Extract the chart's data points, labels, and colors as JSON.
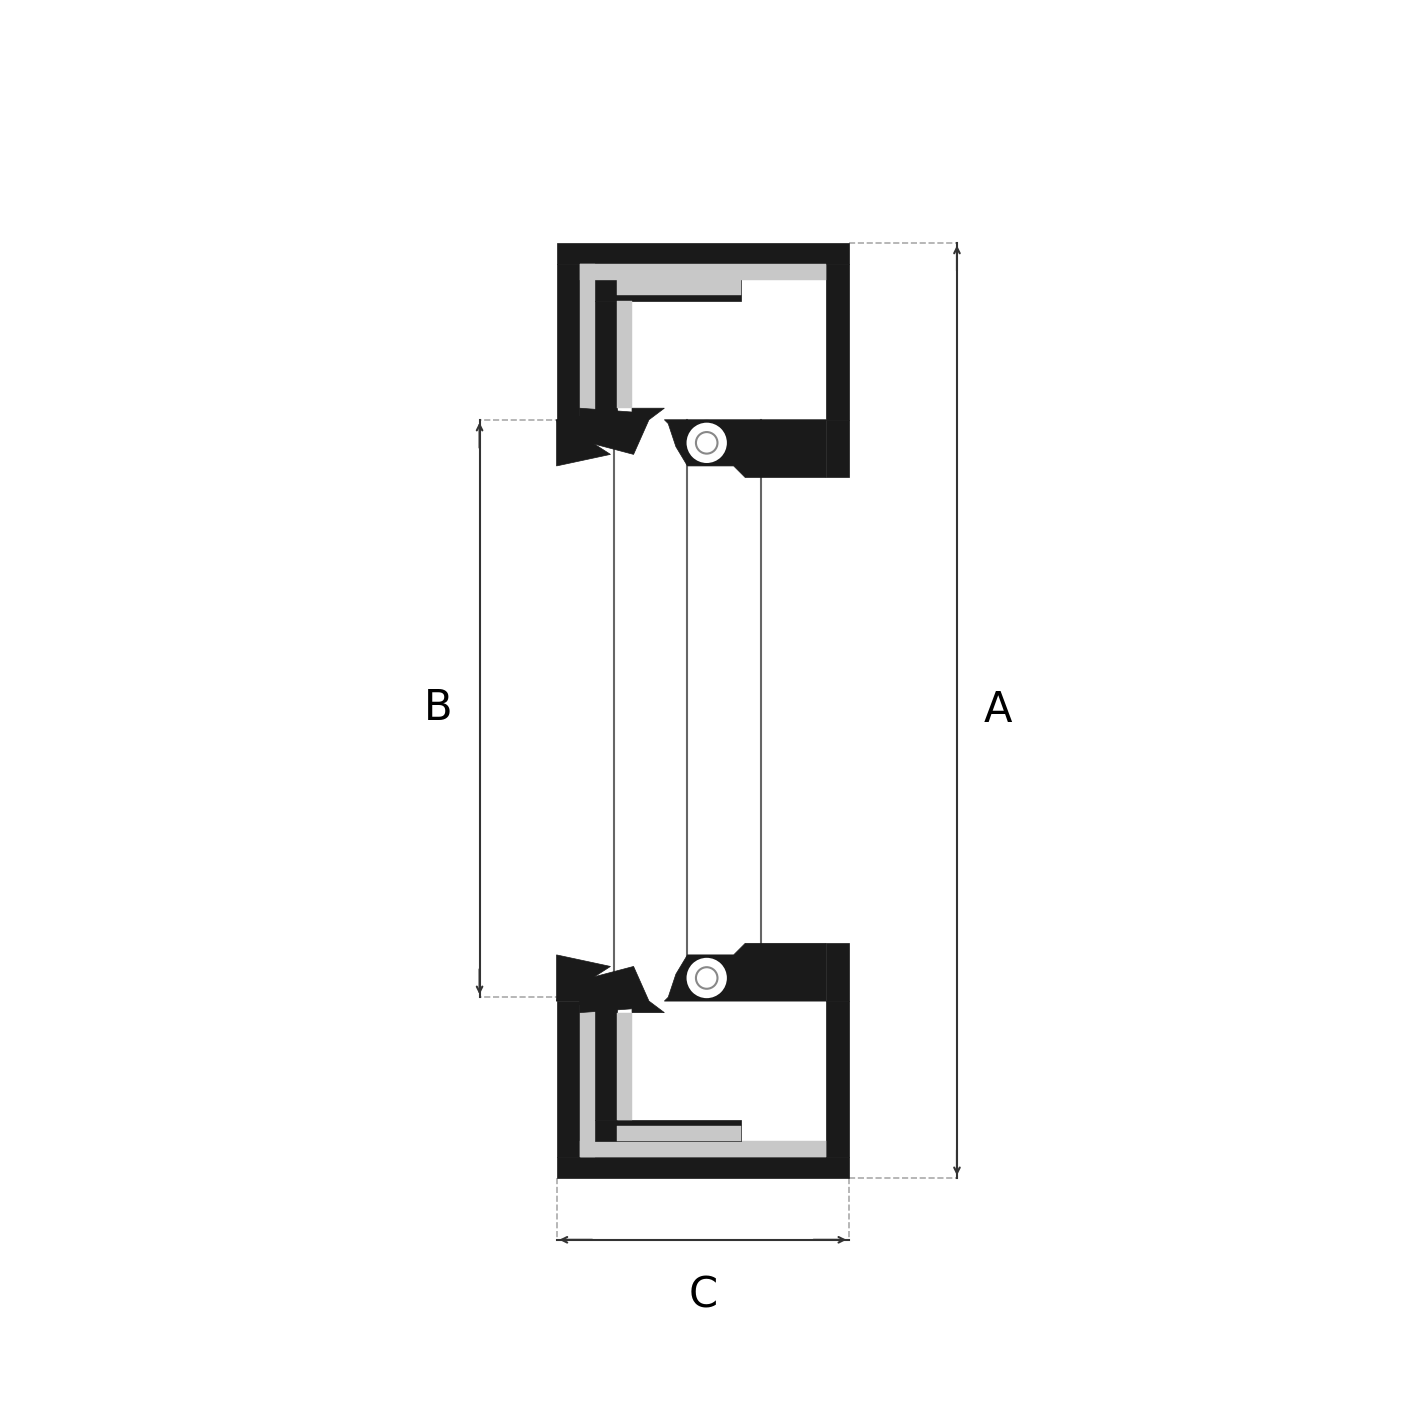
{
  "bg_color": "#ffffff",
  "black_fill": "#1a1a1a",
  "gray_fill": "#c8c8c8",
  "dim_color": "#333333",
  "fig_size": [
    14.06,
    14.06
  ],
  "dpi": 100,
  "label_A": "A",
  "label_B": "B",
  "label_C": "C",
  "label_fontsize": 30
}
